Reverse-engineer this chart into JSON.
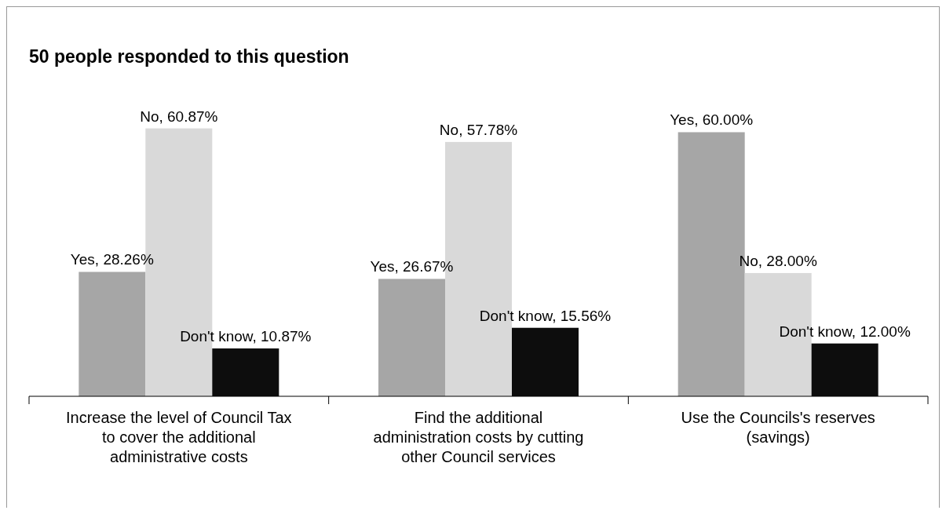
{
  "chart_data": {
    "type": "bar",
    "title": "50 people responded to this question",
    "categories": [
      "Increase the level of Council Tax to cover the additional administrative costs",
      "Find the additional administration costs by cutting other Council services",
      "Use the Councils's reserves (savings)"
    ],
    "series": [
      {
        "color": "#a6a6a6",
        "values": [
          28.26,
          26.67,
          60.0
        ],
        "value_labels": [
          "Yes, 28.26%",
          "Yes, 26.67%",
          "Yes, 60.00%"
        ]
      },
      {
        "color": "#d9d9d9",
        "values": [
          60.87,
          57.78,
          28.0
        ],
        "value_labels": [
          "No, 60.87%",
          "No, 57.78%",
          "No, 28.00%"
        ]
      },
      {
        "color": "#0d0d0d",
        "values": [
          10.87,
          15.56,
          12.0
        ],
        "value_labels": [
          "Don't know, 10.87%",
          "Don't know, 15.56%",
          "Don't know, 12.00%"
        ]
      }
    ]
  }
}
